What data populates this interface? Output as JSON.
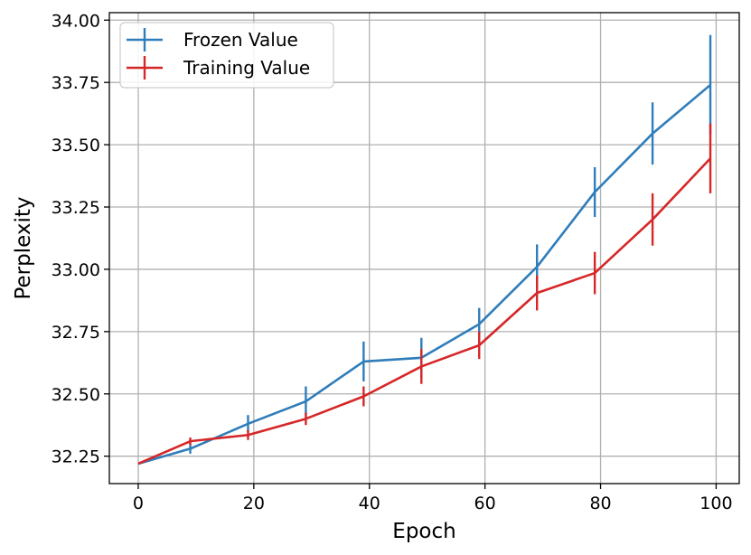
{
  "chart_data": {
    "type": "line",
    "xlabel": "Epoch",
    "ylabel": "Perplexity",
    "xlim": [
      -5,
      104
    ],
    "ylim": [
      32.14,
      34.03
    ],
    "xticks": [
      0,
      20,
      40,
      60,
      80,
      100
    ],
    "yticks": [
      32.25,
      32.5,
      32.75,
      33.0,
      33.25,
      33.5,
      33.75,
      34.0
    ],
    "xtick_labels": [
      "0",
      "20",
      "40",
      "60",
      "80",
      "100"
    ],
    "ytick_labels": [
      "32.25",
      "32.50",
      "32.75",
      "33.00",
      "33.25",
      "33.50",
      "33.75",
      "34.00"
    ],
    "grid": true,
    "legend_position": "top-left",
    "series": [
      {
        "name": "Frozen Value",
        "color": "#2f7dba",
        "x": [
          0,
          9,
          19,
          29,
          39,
          49,
          59,
          69,
          79,
          89,
          99
        ],
        "y": [
          32.22,
          32.28,
          32.38,
          32.47,
          32.63,
          32.645,
          32.78,
          33.01,
          33.31,
          33.545,
          33.74
        ],
        "err": [
          0.0,
          0.02,
          0.035,
          0.06,
          0.08,
          0.08,
          0.065,
          0.09,
          0.1,
          0.125,
          0.2
        ]
      },
      {
        "name": "Training Value",
        "color": "#d62728",
        "x": [
          0,
          9,
          19,
          29,
          39,
          49,
          59,
          69,
          79,
          89,
          99
        ],
        "y": [
          32.22,
          32.31,
          32.335,
          32.4,
          32.49,
          32.61,
          32.695,
          32.905,
          32.985,
          33.2,
          33.445
        ],
        "err": [
          0.0,
          0.015,
          0.02,
          0.025,
          0.04,
          0.07,
          0.055,
          0.07,
          0.085,
          0.105,
          0.14
        ]
      }
    ]
  }
}
